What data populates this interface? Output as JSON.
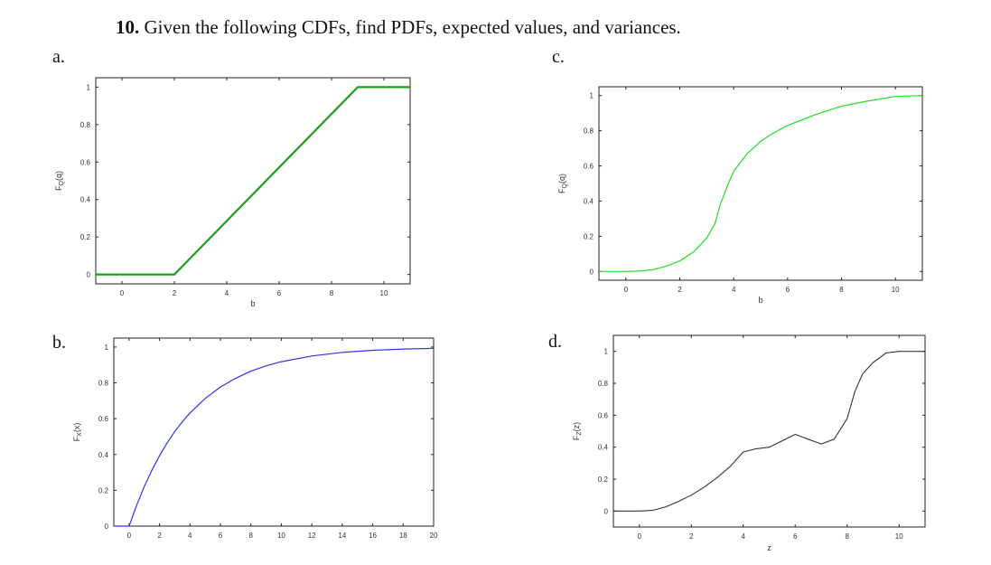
{
  "title": {
    "number": "10.",
    "text": "Given the following CDFs, find PDFs, expected values, and variances."
  },
  "panels": [
    {
      "letter": "a."
    },
    {
      "letter": "b."
    },
    {
      "letter": "c."
    },
    {
      "letter": "d."
    }
  ],
  "chart_data": [
    {
      "id": "a",
      "type": "line",
      "color": "#1a9e1a",
      "xlabel": "q",
      "ylabel": "F_Q(q)",
      "xlim": [
        -1,
        11
      ],
      "ylim": [
        -0.05,
        1.05
      ],
      "xticks": [
        0,
        2,
        4,
        6,
        8,
        10
      ],
      "yticks": [
        0,
        0.2,
        0.4,
        0.6,
        0.8,
        1
      ],
      "xtick_labels": [
        "0",
        "2",
        "4",
        "6",
        "8",
        "10"
      ],
      "ytick_labels": [
        "0",
        "0.2",
        "0.4",
        "0.6",
        "0.8",
        "1"
      ],
      "x": [
        -1,
        2,
        9,
        11
      ],
      "y": [
        0,
        0,
        1,
        1
      ]
    },
    {
      "id": "b",
      "type": "line",
      "color": "#3333dd",
      "xlabel": "",
      "ylabel": "F_X(x)",
      "xlim": [
        -1,
        20
      ],
      "ylim": [
        0,
        1.05
      ],
      "xticks": [
        0,
        2,
        4,
        6,
        8,
        10,
        12,
        14,
        16,
        18,
        20
      ],
      "yticks": [
        0,
        0.2,
        0.4,
        0.6,
        0.8,
        1
      ],
      "xtick_labels": [
        "0",
        "2",
        "4",
        "6",
        "8",
        "10",
        "12",
        "14",
        "16",
        "18",
        "20"
      ],
      "ytick_labels": [
        "0",
        "0.2",
        "0.4",
        "0.6",
        "0.8",
        "1"
      ],
      "x": [
        -1,
        0,
        0.5,
        1,
        1.5,
        2,
        2.5,
        3,
        3.5,
        4,
        5,
        6,
        7,
        8,
        9,
        10,
        12,
        14,
        16,
        18,
        20
      ],
      "y": [
        0,
        0,
        0.117,
        0.221,
        0.312,
        0.393,
        0.465,
        0.528,
        0.583,
        0.632,
        0.713,
        0.777,
        0.826,
        0.865,
        0.895,
        0.918,
        0.95,
        0.97,
        0.982,
        0.989,
        0.993
      ]
    },
    {
      "id": "c",
      "type": "line",
      "color": "#22dd22",
      "xlabel": "q",
      "ylabel": "F_Q(q)",
      "xlim": [
        -1,
        11
      ],
      "ylim": [
        -0.05,
        1.05
      ],
      "xticks": [
        0,
        2,
        4,
        6,
        8,
        10
      ],
      "yticks": [
        0,
        0.2,
        0.4,
        0.6,
        0.8,
        1
      ],
      "xtick_labels": [
        "0",
        "2",
        "4",
        "6",
        "8",
        "10"
      ],
      "ytick_labels": [
        "0",
        "0.2",
        "0.4",
        "0.6",
        "0.8",
        "1"
      ],
      "x": [
        -1,
        0,
        0.5,
        1,
        1.5,
        2,
        2.5,
        3,
        3.3,
        3.5,
        3.8,
        4,
        4.5,
        5,
        5.5,
        6,
        7,
        8,
        9,
        10,
        11
      ],
      "y": [
        0,
        0,
        0.002,
        0.01,
        0.03,
        0.06,
        0.11,
        0.19,
        0.27,
        0.38,
        0.5,
        0.57,
        0.67,
        0.74,
        0.79,
        0.83,
        0.89,
        0.94,
        0.97,
        0.995,
        1.0
      ]
    },
    {
      "id": "d",
      "type": "line",
      "color": "#333333",
      "xlabel": "z",
      "ylabel": "F_Z(z)",
      "xlim": [
        -1,
        11
      ],
      "ylim": [
        -0.1,
        1.1
      ],
      "xticks": [
        0,
        2,
        4,
        6,
        8,
        10
      ],
      "yticks": [
        0,
        0.2,
        0.4,
        0.6,
        0.8,
        1
      ],
      "xtick_labels": [
        "0",
        "2",
        "4",
        "6",
        "8",
        "10"
      ],
      "ytick_labels": [
        "0",
        "0.2",
        "0.4",
        "0.6",
        "0.8",
        "1"
      ],
      "x": [
        -1,
        0,
        0.5,
        1,
        1.5,
        2,
        2.5,
        3,
        3.5,
        4,
        4.5,
        5,
        5.5,
        6,
        6.5,
        7,
        7.5,
        8,
        8.3,
        8.6,
        9,
        9.5,
        10,
        11
      ],
      "y": [
        0,
        0,
        0.004,
        0.025,
        0.06,
        0.1,
        0.15,
        0.21,
        0.28,
        0.37,
        0.39,
        0.4,
        0.44,
        0.48,
        0.45,
        0.42,
        0.45,
        0.58,
        0.75,
        0.86,
        0.93,
        0.99,
        1.0,
        1.0
      ]
    }
  ]
}
